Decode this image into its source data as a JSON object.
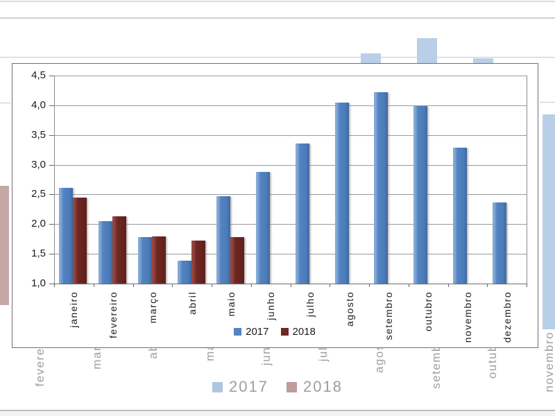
{
  "chart_data": {
    "type": "bar",
    "title": "",
    "categories": [
      "janeiro",
      "fevereiro",
      "março",
      "abril",
      "maio",
      "junho",
      "julho",
      "agosto",
      "setembro",
      "outubro",
      "novembro",
      "dezembro"
    ],
    "series": [
      {
        "name": "2017",
        "color": "#5383c2",
        "values": [
          2.61,
          2.05,
          1.78,
          1.39,
          2.47,
          2.88,
          3.36,
          4.05,
          4.22,
          3.99,
          3.29,
          2.37
        ]
      },
      {
        "name": "2018",
        "color": "#6f2823",
        "values": [
          2.45,
          2.13,
          1.79,
          1.72,
          1.78,
          null,
          null,
          null,
          null,
          null,
          null,
          null
        ]
      }
    ],
    "xlabel": "",
    "ylabel": "",
    "ylim": [
      1.0,
      4.5
    ],
    "ytick_step": 0.5,
    "ytick_labels": [
      "4,5",
      "4,0",
      "3,5",
      "3,0",
      "2,5",
      "2,0",
      "1,5",
      "1,0"
    ],
    "decimal_separator": ",",
    "grid": true,
    "legend_position": "bottom-center"
  },
  "background_chart": {
    "description": "faded duplicate of the same chart behind the zoomed chart object",
    "visible_months": [
      "fevereiro",
      "março",
      "abril",
      "maio",
      "junho",
      "julho",
      "agosto",
      "setembro",
      "outubro",
      "novembro"
    ],
    "bars_visible": [
      {
        "month": "agosto",
        "series": "2017"
      },
      {
        "month": "setembro",
        "series": "2017"
      },
      {
        "month": "outubro",
        "series": "2017"
      },
      {
        "month": "novembro",
        "series": "2017"
      },
      {
        "month": "janeiro",
        "series": "2018"
      }
    ],
    "legend": [
      {
        "label": "2017",
        "color": "#aec6e4"
      },
      {
        "label": "2018",
        "color": "#bd9c9b"
      }
    ],
    "faded_bar_blue": "#b9cfe8",
    "faded_bar_red": "#c5a7a6",
    "text_color": "#9e9e9e"
  }
}
